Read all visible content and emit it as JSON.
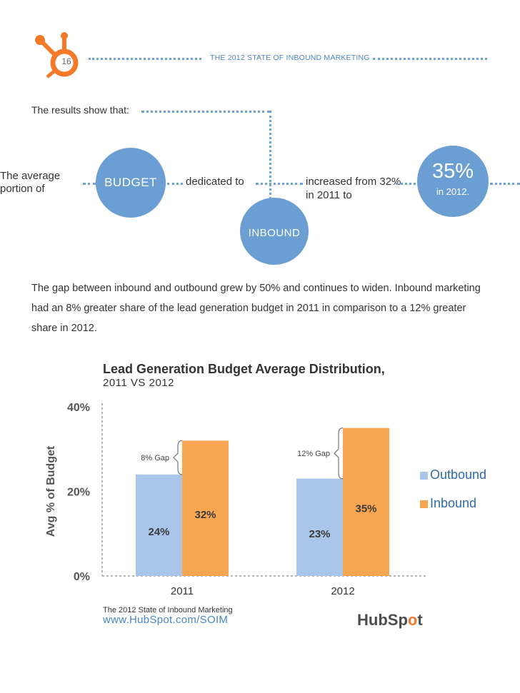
{
  "header": {
    "page_number": "16",
    "report_title": "THE 2012 STATE OF INBOUND MARKETING"
  },
  "intro": "The results show that:",
  "flow": {
    "text_average": "The average portion of",
    "bubble_budget": "BUDGET",
    "text_dedicated": "dedicated to",
    "bubble_inbound": "INBOUND",
    "text_increased": "increased from 32% in 2011 to",
    "bubble_percent": "35%",
    "bubble_percent_sub": "in 2012."
  },
  "paragraph": "The gap between inbound and outbound grew by 50% and continues to widen. Inbound marketing had an 8% greater share of the lead generation budget in 2011 in comparison to a 12% greater share in 2012.",
  "chart_data": {
    "type": "bar",
    "title": "Lead Generation Budget Average Distribution,",
    "subtitle": "2011 VS 2012",
    "categories": [
      "2011",
      "2012"
    ],
    "series": [
      {
        "name": "Outbound",
        "values": [
          24,
          23
        ],
        "labels": [
          "24%",
          "23%"
        ],
        "color": "#a9c6ea"
      },
      {
        "name": "Inbound",
        "values": [
          32,
          35
        ],
        "labels": [
          "32%",
          "35%"
        ],
        "color": "#f9a653"
      }
    ],
    "gaps": [
      "8% Gap",
      "12% Gap"
    ],
    "ylabel": "Avg % of Budget",
    "yticks": [
      0,
      20,
      40
    ],
    "ytick_labels": [
      "0%",
      "20%",
      "40%"
    ],
    "ylim": [
      0,
      40
    ],
    "legend_position": "right",
    "source": "The 2012 State of Inbound Marketing",
    "url": "www.HubSpot.com/SOIM"
  },
  "brand": {
    "logo_prefix": "HubSp",
    "logo_o": "o",
    "logo_suffix": "t",
    "accent": "#f47a2a",
    "blue": "#6b9fd4"
  }
}
